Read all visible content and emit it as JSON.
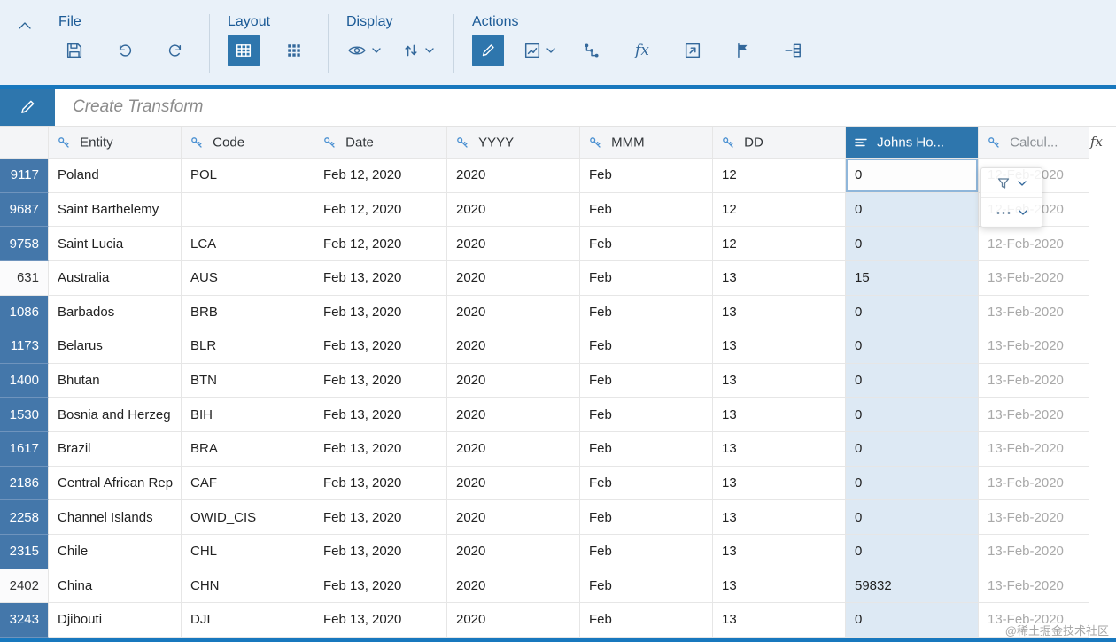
{
  "toolbar": {
    "groups": [
      {
        "label": "File"
      },
      {
        "label": "Layout"
      },
      {
        "label": "Display"
      },
      {
        "label": "Actions"
      }
    ]
  },
  "transform_bar": {
    "title": "Create Transform"
  },
  "table": {
    "columns": [
      {
        "key": "num",
        "label": ""
      },
      {
        "key": "entity",
        "label": "Entity"
      },
      {
        "key": "code",
        "label": "Code"
      },
      {
        "key": "date",
        "label": "Date"
      },
      {
        "key": "yyyy",
        "label": "YYYY"
      },
      {
        "key": "mmm",
        "label": "MMM"
      },
      {
        "key": "dd",
        "label": "DD"
      },
      {
        "key": "johns",
        "label": "Johns Ho...",
        "selected": true
      },
      {
        "key": "calc",
        "label": "Calcul...",
        "calculated": true
      }
    ],
    "header_fx_label": "fx",
    "focused_cell": {
      "row": 0,
      "col": "johns"
    },
    "rows": [
      {
        "num": "9117",
        "entity": "Poland",
        "code": "POL",
        "date": "Feb 12, 2020",
        "yyyy": "2020",
        "mmm": "Feb",
        "dd": "12",
        "johns": "0",
        "calc": "12-Feb-2020"
      },
      {
        "num": "9687",
        "entity": "Saint Barthelemy",
        "code": "",
        "date": "Feb 12, 2020",
        "yyyy": "2020",
        "mmm": "Feb",
        "dd": "12",
        "johns": "0",
        "calc": "12-Feb-2020"
      },
      {
        "num": "9758",
        "entity": "Saint Lucia",
        "code": "LCA",
        "date": "Feb 12, 2020",
        "yyyy": "2020",
        "mmm": "Feb",
        "dd": "12",
        "johns": "0",
        "calc": "12-Feb-2020"
      },
      {
        "num": "631",
        "entity": "Australia",
        "code": "AUS",
        "date": "Feb 13, 2020",
        "yyyy": "2020",
        "mmm": "Feb",
        "dd": "13",
        "johns": "15",
        "calc": "13-Feb-2020",
        "plain": true
      },
      {
        "num": "1086",
        "entity": "Barbados",
        "code": "BRB",
        "date": "Feb 13, 2020",
        "yyyy": "2020",
        "mmm": "Feb",
        "dd": "13",
        "johns": "0",
        "calc": "13-Feb-2020"
      },
      {
        "num": "1173",
        "entity": "Belarus",
        "code": "BLR",
        "date": "Feb 13, 2020",
        "yyyy": "2020",
        "mmm": "Feb",
        "dd": "13",
        "johns": "0",
        "calc": "13-Feb-2020"
      },
      {
        "num": "1400",
        "entity": "Bhutan",
        "code": "BTN",
        "date": "Feb 13, 2020",
        "yyyy": "2020",
        "mmm": "Feb",
        "dd": "13",
        "johns": "0",
        "calc": "13-Feb-2020"
      },
      {
        "num": "1530",
        "entity": "Bosnia and Herzeg",
        "code": "BIH",
        "date": "Feb 13, 2020",
        "yyyy": "2020",
        "mmm": "Feb",
        "dd": "13",
        "johns": "0",
        "calc": "13-Feb-2020"
      },
      {
        "num": "1617",
        "entity": "Brazil",
        "code": "BRA",
        "date": "Feb 13, 2020",
        "yyyy": "2020",
        "mmm": "Feb",
        "dd": "13",
        "johns": "0",
        "calc": "13-Feb-2020"
      },
      {
        "num": "2186",
        "entity": "Central African Rep",
        "code": "CAF",
        "date": "Feb 13, 2020",
        "yyyy": "2020",
        "mmm": "Feb",
        "dd": "13",
        "johns": "0",
        "calc": "13-Feb-2020"
      },
      {
        "num": "2258",
        "entity": "Channel Islands",
        "code": "OWID_CIS",
        "date": "Feb 13, 2020",
        "yyyy": "2020",
        "mmm": "Feb",
        "dd": "13",
        "johns": "0",
        "calc": "13-Feb-2020"
      },
      {
        "num": "2315",
        "entity": "Chile",
        "code": "CHL",
        "date": "Feb 13, 2020",
        "yyyy": "2020",
        "mmm": "Feb",
        "dd": "13",
        "johns": "0",
        "calc": "13-Feb-2020"
      },
      {
        "num": "2402",
        "entity": "China",
        "code": "CHN",
        "date": "Feb 13, 2020",
        "yyyy": "2020",
        "mmm": "Feb",
        "dd": "13",
        "johns": "59832",
        "calc": "13-Feb-2020",
        "plain": true
      },
      {
        "num": "3243",
        "entity": "Djibouti",
        "code": "DJI",
        "date": "Feb 13, 2020",
        "yyyy": "2020",
        "mmm": "Feb",
        "dd": "13",
        "johns": "0",
        "calc": "13-Feb-2020"
      }
    ]
  },
  "colors": {
    "accent_blue": "#1878be",
    "selected_blue": "#2e76ad",
    "rownum_blue": "#4477aa",
    "selected_column_bg": "#dde9f4",
    "toolbar_bg": "#e9f1f9"
  },
  "watermark": "@稀土掘金技术社区"
}
